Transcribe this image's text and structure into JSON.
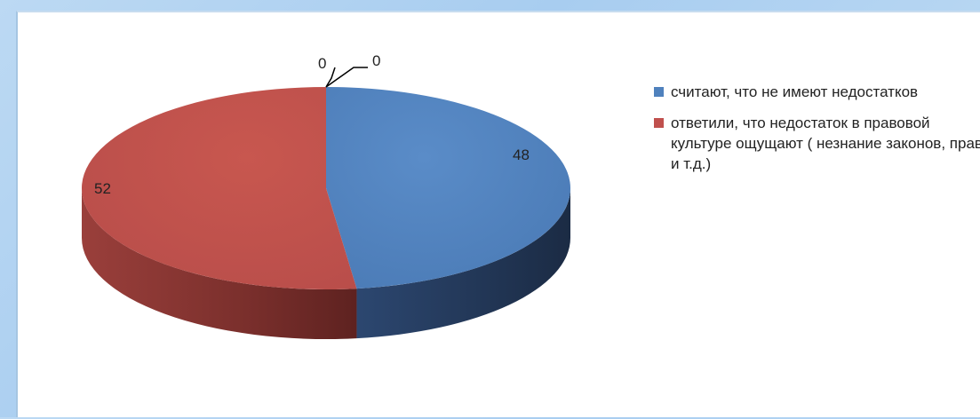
{
  "chart_data": {
    "type": "pie",
    "three_d": true,
    "series": [
      {
        "name": "считают, что не имеют недостатков",
        "value": 48,
        "color": "#4f81bd"
      },
      {
        "name": "ответили, что недостаток в правовой культуре ощущают ( незнание законов, прав и т.д.)",
        "value": 52,
        "color": "#c0504d"
      },
      {
        "name": "",
        "value": 0,
        "color": "#9bbb59"
      },
      {
        "name": "",
        "value": 0,
        "color": "#8064a2"
      }
    ],
    "data_labels": [
      "48",
      "52",
      "0",
      "0"
    ],
    "legend": {
      "position": "right",
      "items": [
        {
          "label": "считают, что не имеют недостатков",
          "color": "#4f81bd"
        },
        {
          "label": "ответили, что недостаток в правовой культуре ощущают ( незнание законов, прав и т.д.)",
          "color": "#c0504d"
        }
      ]
    }
  }
}
